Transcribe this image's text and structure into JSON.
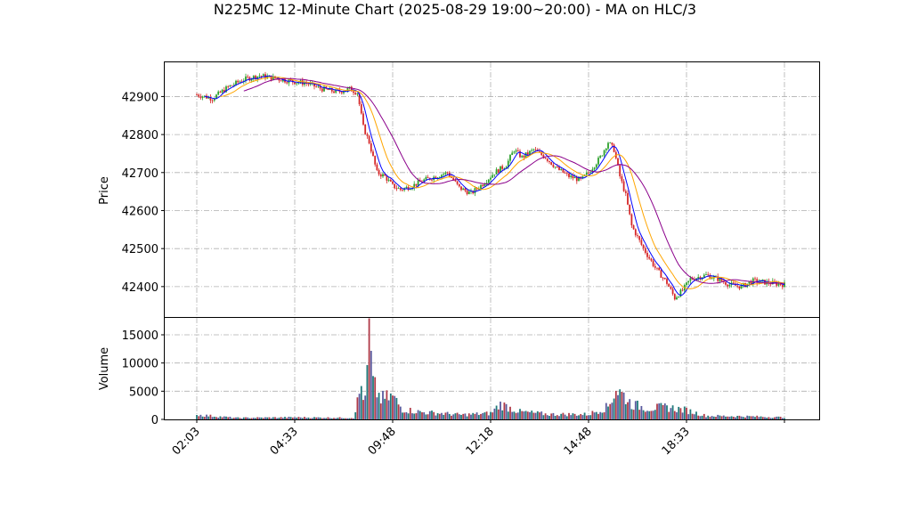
{
  "chart_data": {
    "type": "candlestick",
    "title": "N225MC 12-Minute Chart (2025-08-29 19:00~20:00) - MA on HLC/3",
    "price_panel": {
      "ylabel": "Price",
      "ylim": [
        42320,
        42990
      ],
      "yticks": [
        42400,
        42500,
        42600,
        42700,
        42800,
        42900
      ],
      "up_color": "#2ca02c",
      "down_color": "#d62728"
    },
    "volume_panel": {
      "ylabel": "Volume",
      "ylim": [
        0,
        18000
      ],
      "yticks": [
        0,
        5000,
        10000,
        15000
      ],
      "bar_colors": [
        "#1f7a7a",
        "#b03a48",
        "#5a5a9e"
      ]
    },
    "x_tick_labels": [
      "02:03",
      "04:33",
      "09:48",
      "12:18",
      "14:48",
      "18:33"
    ],
    "x_tick_positions": [
      0,
      50,
      100,
      150,
      200,
      250
    ],
    "bar_count": 301,
    "price_anchors": [
      [
        0,
        42905
      ],
      [
        8,
        42895
      ],
      [
        16,
        42925
      ],
      [
        24,
        42945
      ],
      [
        32,
        42955
      ],
      [
        40,
        42948
      ],
      [
        48,
        42940
      ],
      [
        56,
        42935
      ],
      [
        64,
        42920
      ],
      [
        72,
        42912
      ],
      [
        78,
        42920
      ],
      [
        82,
        42910
      ],
      [
        85,
        42820
      ],
      [
        88,
        42780
      ],
      [
        92,
        42700
      ],
      [
        96,
        42690
      ],
      [
        100,
        42665
      ],
      [
        104,
        42655
      ],
      [
        110,
        42665
      ],
      [
        116,
        42680
      ],
      [
        122,
        42690
      ],
      [
        128,
        42700
      ],
      [
        134,
        42660
      ],
      [
        140,
        42645
      ],
      [
        146,
        42670
      ],
      [
        152,
        42700
      ],
      [
        158,
        42720
      ],
      [
        162,
        42760
      ],
      [
        166,
        42740
      ],
      [
        172,
        42760
      ],
      [
        178,
        42740
      ],
      [
        184,
        42710
      ],
      [
        190,
        42690
      ],
      [
        196,
        42680
      ],
      [
        200,
        42700
      ],
      [
        206,
        42740
      ],
      [
        210,
        42780
      ],
      [
        213,
        42760
      ],
      [
        216,
        42690
      ],
      [
        219,
        42640
      ],
      [
        222,
        42560
      ],
      [
        228,
        42500
      ],
      [
        234,
        42450
      ],
      [
        240,
        42410
      ],
      [
        244,
        42370
      ],
      [
        248,
        42390
      ],
      [
        252,
        42420
      ],
      [
        260,
        42430
      ],
      [
        266,
        42420
      ],
      [
        272,
        42405
      ],
      [
        278,
        42400
      ],
      [
        284,
        42415
      ],
      [
        292,
        42410
      ],
      [
        300,
        42405
      ]
    ],
    "volume_anchors": [
      [
        0,
        900
      ],
      [
        20,
        300
      ],
      [
        50,
        400
      ],
      [
        80,
        300
      ],
      [
        84,
        6500
      ],
      [
        86,
        3500
      ],
      [
        88,
        16500
      ],
      [
        90,
        6800
      ],
      [
        94,
        4000
      ],
      [
        100,
        4500
      ],
      [
        105,
        2000
      ],
      [
        115,
        1400
      ],
      [
        125,
        1200
      ],
      [
        135,
        900
      ],
      [
        150,
        1200
      ],
      [
        155,
        3000
      ],
      [
        165,
        1500
      ],
      [
        180,
        1000
      ],
      [
        200,
        1000
      ],
      [
        210,
        2500
      ],
      [
        214,
        6000
      ],
      [
        218,
        4700
      ],
      [
        222,
        3000
      ],
      [
        230,
        2200
      ],
      [
        240,
        2400
      ],
      [
        250,
        1800
      ],
      [
        260,
        700
      ],
      [
        280,
        600
      ],
      [
        300,
        400
      ]
    ],
    "moving_averages": [
      {
        "period": 5,
        "color": "#0000ff"
      },
      {
        "period": 13,
        "color": "#ffa500"
      },
      {
        "period": 25,
        "color": "#8b008b"
      }
    ]
  }
}
